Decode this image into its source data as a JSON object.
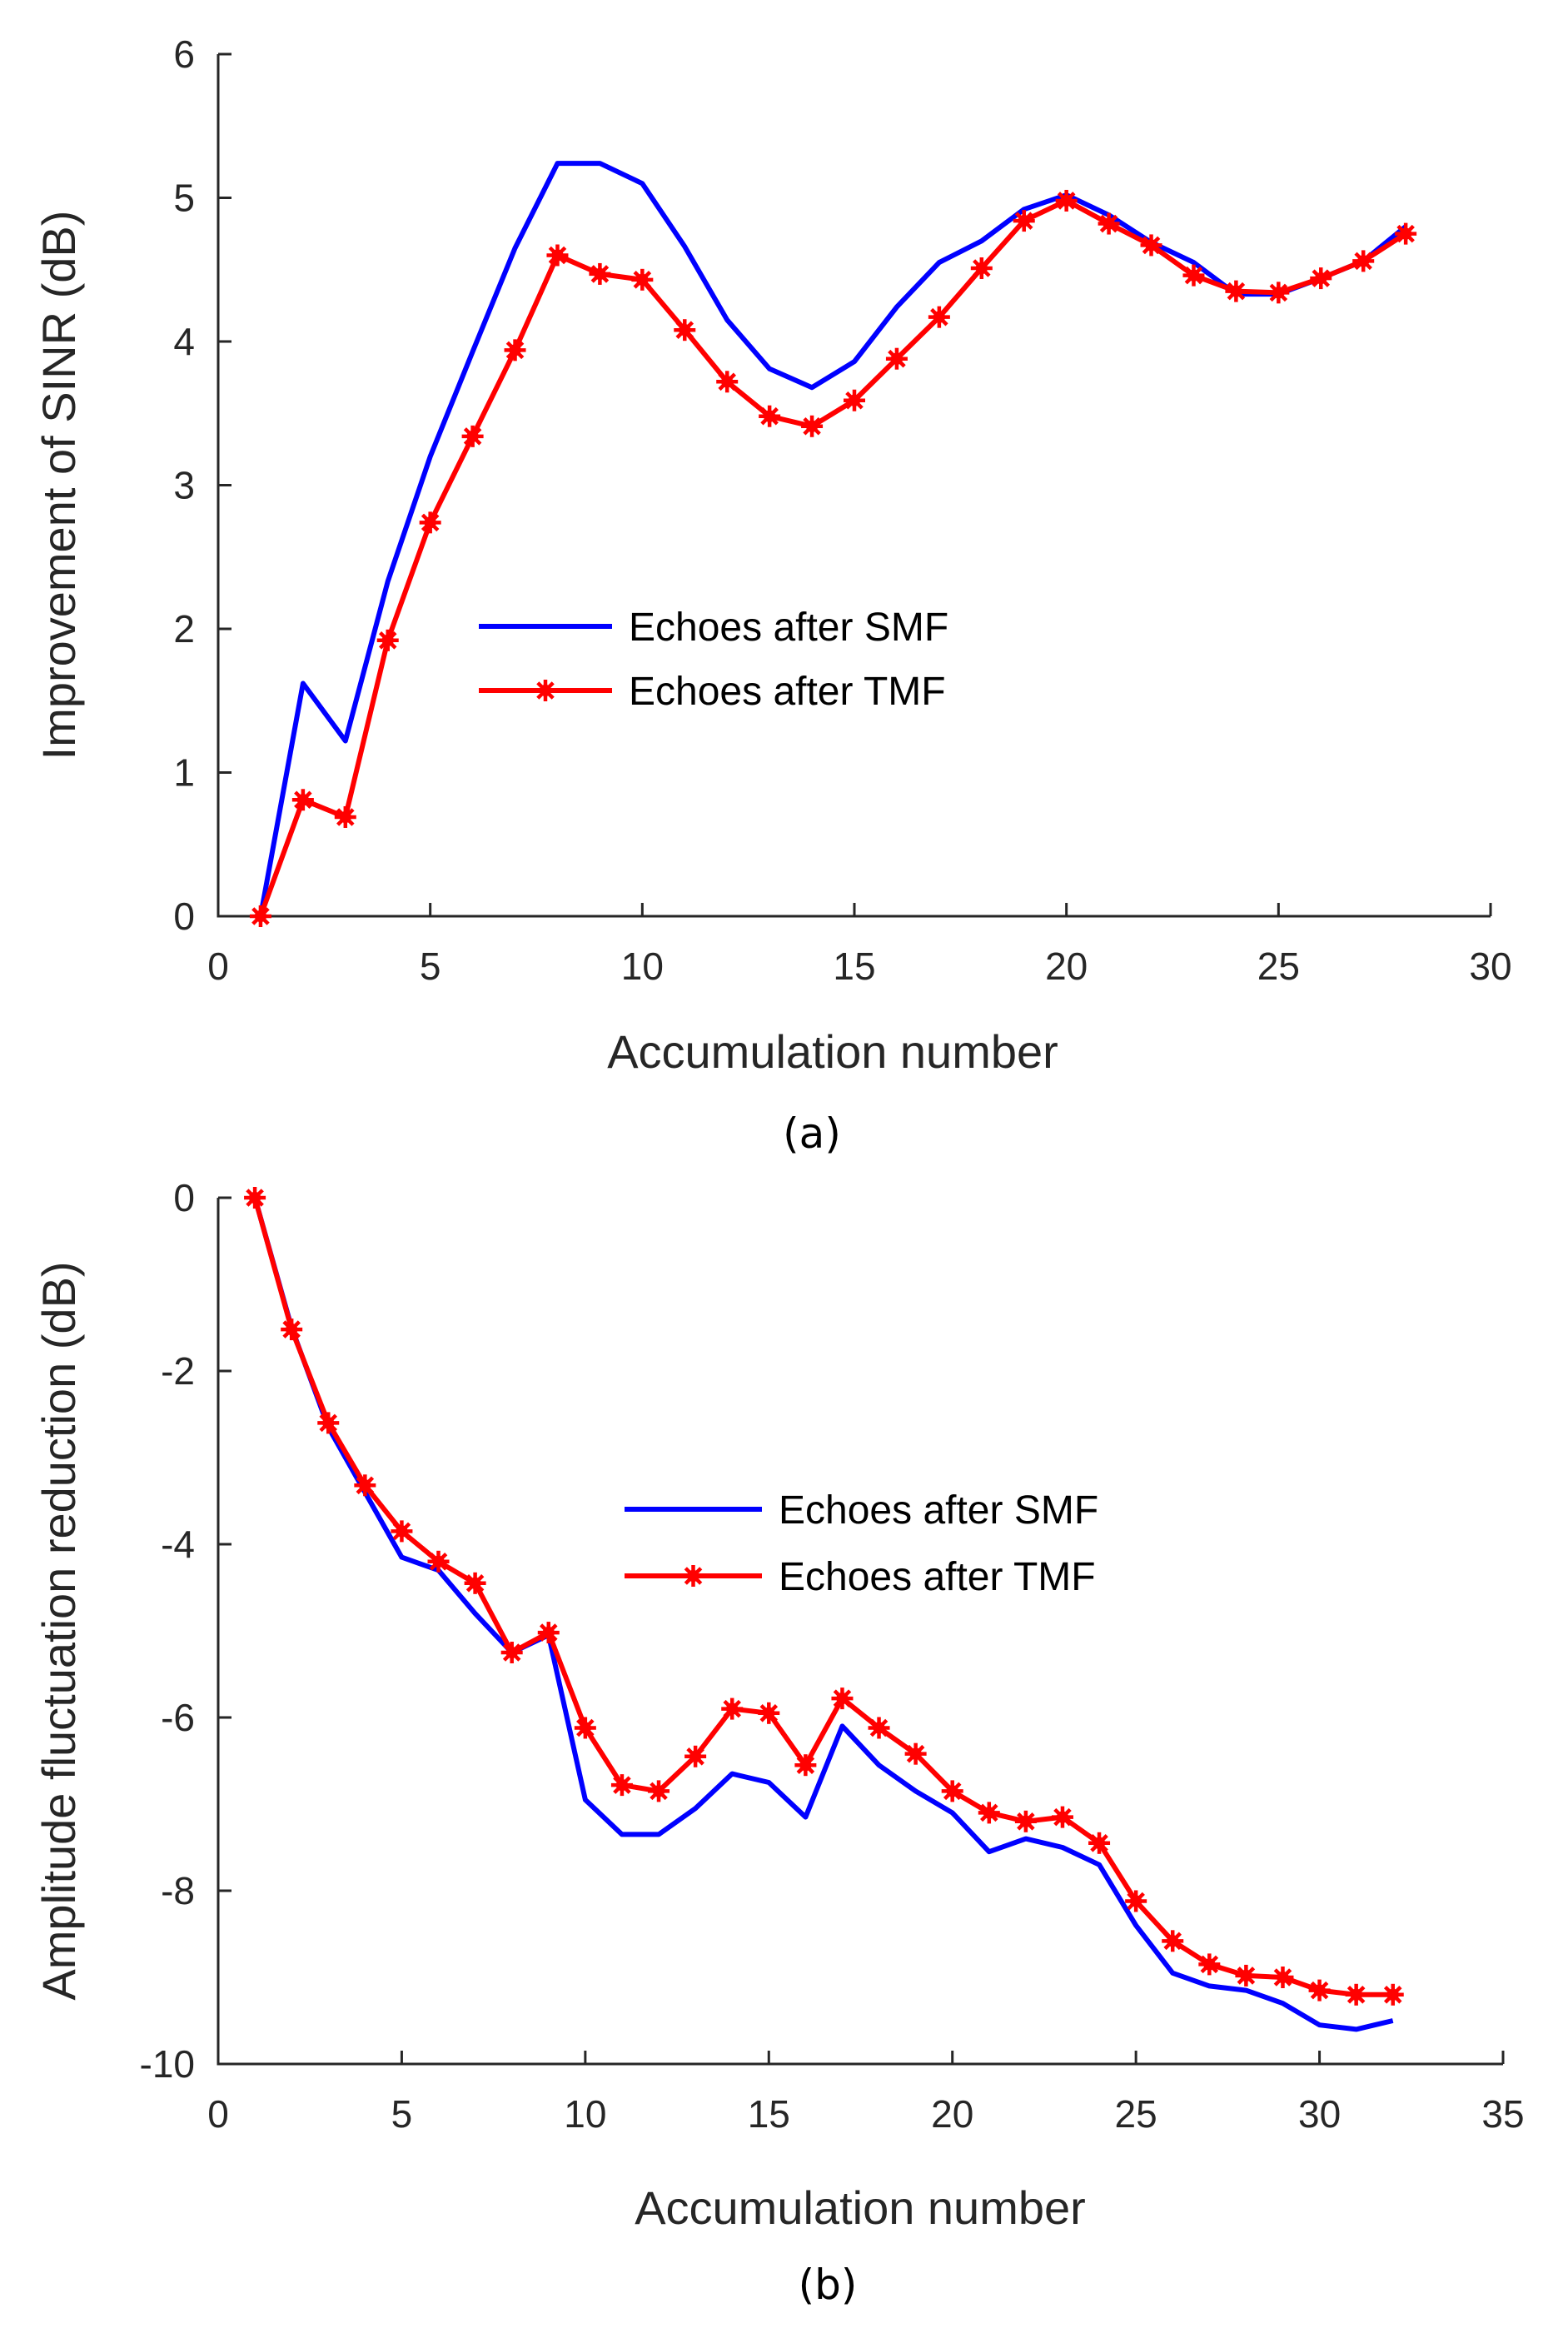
{
  "chart_data": [
    {
      "type": "line",
      "id": "a",
      "caption": "(a)",
      "title": "",
      "xlabel": "Accumulation number",
      "ylabel": "Improvement of SINR (dB)",
      "xlim": [
        0,
        30
      ],
      "ylim": [
        0,
        6
      ],
      "xticks": [
        0,
        5,
        10,
        15,
        20,
        25,
        30
      ],
      "yticks": [
        0,
        1,
        2,
        3,
        4,
        5,
        6
      ],
      "grid": false,
      "legend_position": "center",
      "x": [
        1,
        2,
        3,
        4,
        5,
        6,
        7,
        8,
        9,
        10,
        11,
        12,
        13,
        14,
        15,
        16,
        17,
        18,
        19,
        20,
        21,
        22,
        23,
        24,
        25,
        26,
        27,
        28
      ],
      "series": [
        {
          "name": "Echoes after SMF",
          "color": "#0000ff",
          "marker": "none",
          "values": [
            0,
            1.62,
            1.22,
            2.33,
            3.2,
            3.93,
            4.65,
            5.24,
            5.24,
            5.1,
            4.66,
            4.15,
            3.81,
            3.68,
            3.86,
            4.24,
            4.55,
            4.7,
            4.92,
            5.02,
            4.88,
            4.69,
            4.55,
            4.33,
            4.33,
            4.44,
            4.56,
            4.8
          ]
        },
        {
          "name": "Echoes after TMF",
          "color": "#ff0000",
          "marker": "asterisk",
          "values": [
            0,
            0.81,
            0.69,
            1.92,
            2.74,
            3.34,
            3.94,
            4.6,
            4.47,
            4.43,
            4.08,
            3.72,
            3.48,
            3.41,
            3.59,
            3.88,
            4.17,
            4.51,
            4.84,
            4.98,
            4.82,
            4.67,
            4.46,
            4.35,
            4.34,
            4.44,
            4.56,
            4.75
          ]
        }
      ]
    },
    {
      "type": "line",
      "id": "b",
      "caption": "(b)",
      "title": "",
      "xlabel": "Accumulation number",
      "ylabel": "Amplitude fluctuation reduction (dB)",
      "xlim": [
        0,
        35
      ],
      "ylim": [
        -10,
        0
      ],
      "xticks": [
        0,
        5,
        10,
        15,
        20,
        25,
        30,
        35
      ],
      "yticks": [
        -10,
        -8,
        -6,
        -4,
        -2,
        0
      ],
      "grid": false,
      "legend_position": "center",
      "x": [
        1,
        2,
        3,
        4,
        5,
        6,
        7,
        8,
        9,
        10,
        11,
        12,
        13,
        14,
        15,
        16,
        17,
        18,
        19,
        20,
        21,
        22,
        23,
        24,
        25,
        26,
        27,
        28,
        29,
        30,
        31,
        32
      ],
      "series": [
        {
          "name": "Echoes after SMF",
          "color": "#0000ff",
          "marker": "none",
          "values": [
            0,
            -1.5,
            -2.65,
            -3.4,
            -4.15,
            -4.3,
            -4.8,
            -5.25,
            -5.05,
            -6.95,
            -7.35,
            -7.35,
            -7.05,
            -6.65,
            -6.75,
            -7.15,
            -6.1,
            -6.55,
            -6.85,
            -7.1,
            -7.55,
            -7.4,
            -7.5,
            -7.7,
            -8.4,
            -8.95,
            -9.1,
            -9.15,
            -9.3,
            -9.55,
            -9.6,
            -9.5
          ]
        },
        {
          "name": "Echoes after TMF",
          "color": "#ff0000",
          "marker": "asterisk",
          "values": [
            0,
            -1.52,
            -2.6,
            -3.32,
            -3.85,
            -4.2,
            -4.45,
            -5.25,
            -5.02,
            -6.12,
            -6.78,
            -6.85,
            -6.45,
            -5.9,
            -5.95,
            -6.55,
            -5.78,
            -6.12,
            -6.42,
            -6.85,
            -7.1,
            -7.2,
            -7.15,
            -7.45,
            -8.12,
            -8.58,
            -8.85,
            -8.98,
            -9.0,
            -9.15,
            -9.2,
            -9.2
          ]
        }
      ]
    }
  ]
}
